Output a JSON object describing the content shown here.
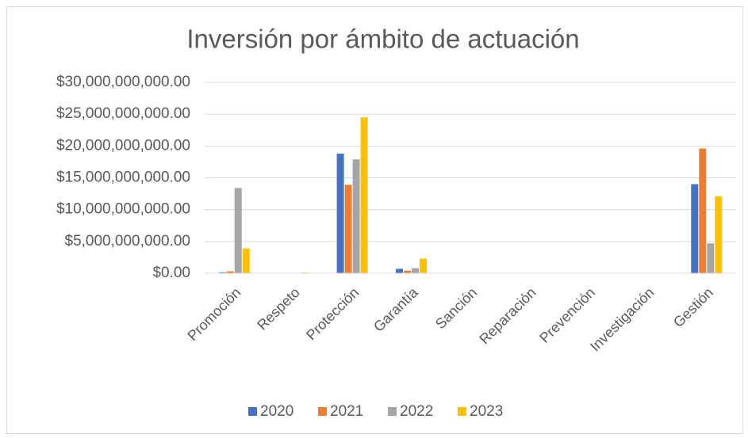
{
  "chart_data": {
    "type": "bar",
    "title": "Inversión por ámbito de actuación",
    "categories": [
      "Promoción",
      "Respeto",
      "Protección",
      "Garantía",
      "Sanción",
      "Reparación",
      "Prevención",
      "Investigación",
      "Gestión"
    ],
    "series": [
      {
        "name": "2020",
        "color": "#4472c4",
        "values": [
          150000000,
          30000000,
          18800000000,
          700000000,
          20000000,
          20000000,
          20000000,
          20000000,
          14000000000
        ]
      },
      {
        "name": "2021",
        "color": "#ed7d31",
        "values": [
          300000000,
          20000000,
          13900000000,
          400000000,
          20000000,
          20000000,
          20000000,
          20000000,
          19600000000
        ]
      },
      {
        "name": "2022",
        "color": "#a5a5a5",
        "values": [
          13400000000,
          50000000,
          17900000000,
          800000000,
          50000000,
          20000000,
          20000000,
          20000000,
          4700000000
        ]
      },
      {
        "name": "2023",
        "color": "#ffc000",
        "values": [
          3900000000,
          100000000,
          24500000000,
          2300000000,
          20000000,
          20000000,
          20000000,
          20000000,
          12100000000
        ]
      }
    ],
    "ylim": [
      0,
      30000000000
    ],
    "yticks": [
      {
        "value": 0,
        "label": "$0.00"
      },
      {
        "value": 5000000000,
        "label": "$5,000,000,000.00"
      },
      {
        "value": 10000000000,
        "label": "$10,000,000,000.00"
      },
      {
        "value": 15000000000,
        "label": "$15,000,000,000.00"
      },
      {
        "value": 20000000000,
        "label": "$20,000,000,000.00"
      },
      {
        "value": 25000000000,
        "label": "$25,000,000,000.00"
      },
      {
        "value": 30000000000,
        "label": "$30,000,000,000.00"
      }
    ],
    "grid": true,
    "legend": "bottom"
  }
}
